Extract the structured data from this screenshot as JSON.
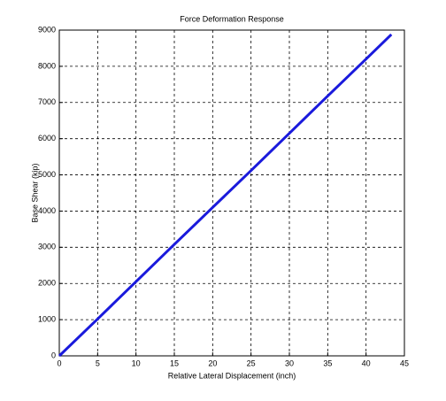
{
  "chart_data": {
    "type": "line",
    "title": "Force Deformation Response",
    "x_label": "Relative Lateral Displacement (inch)",
    "y_label": "Base Shear (kip)",
    "x": [
      0,
      5,
      10,
      15,
      20,
      25,
      30,
      35,
      40,
      43.3
    ],
    "series": [
      {
        "name": "Base Shear",
        "color": "#1a1adc",
        "values": [
          0,
          1020,
          2050,
          3080,
          4100,
          5120,
          6150,
          7180,
          8200,
          8880
        ]
      }
    ],
    "xlim": [
      0,
      45
    ],
    "xticks": [
      0,
      5,
      10,
      15,
      20,
      25,
      30,
      35,
      40,
      45
    ],
    "ylim": [
      0,
      9000
    ],
    "yticks": [
      0,
      1000,
      2000,
      3000,
      4000,
      5000,
      6000,
      7000,
      8000,
      9000
    ],
    "grid": true
  }
}
